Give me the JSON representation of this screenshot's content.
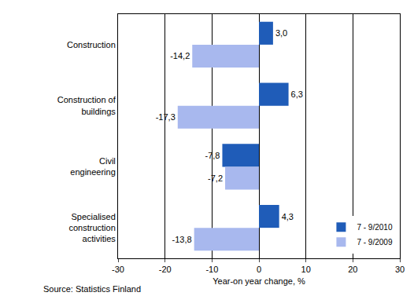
{
  "chart_data": {
    "type": "bar",
    "orientation": "horizontal",
    "categories": [
      "Construction",
      "Construction of buildings",
      "Civil engineering",
      "Specialised construction activities"
    ],
    "series": [
      {
        "name": "7 - 9/2010",
        "color": "#1f5cb8",
        "values": [
          3.0,
          6.3,
          -7.8,
          4.3
        ],
        "value_labels": [
          "3,0",
          "6,3",
          "-7,8",
          "4,3"
        ]
      },
      {
        "name": "7 - 9/2009",
        "color": "#a8b8ee",
        "values": [
          -14.2,
          -17.3,
          -7.2,
          -13.8
        ],
        "value_labels": [
          "-14,2",
          "-17,3",
          "-7,2",
          "-13,8"
        ]
      }
    ],
    "xlabel": "Year-on year change, %",
    "xlim": [
      -30,
      30
    ],
    "xticks": [
      -30,
      -20,
      -10,
      0,
      10,
      20,
      30
    ],
    "grid": true,
    "legend": "lower right",
    "data_labels": true,
    "annotations": [
      "Source: Statistics Finland"
    ]
  }
}
